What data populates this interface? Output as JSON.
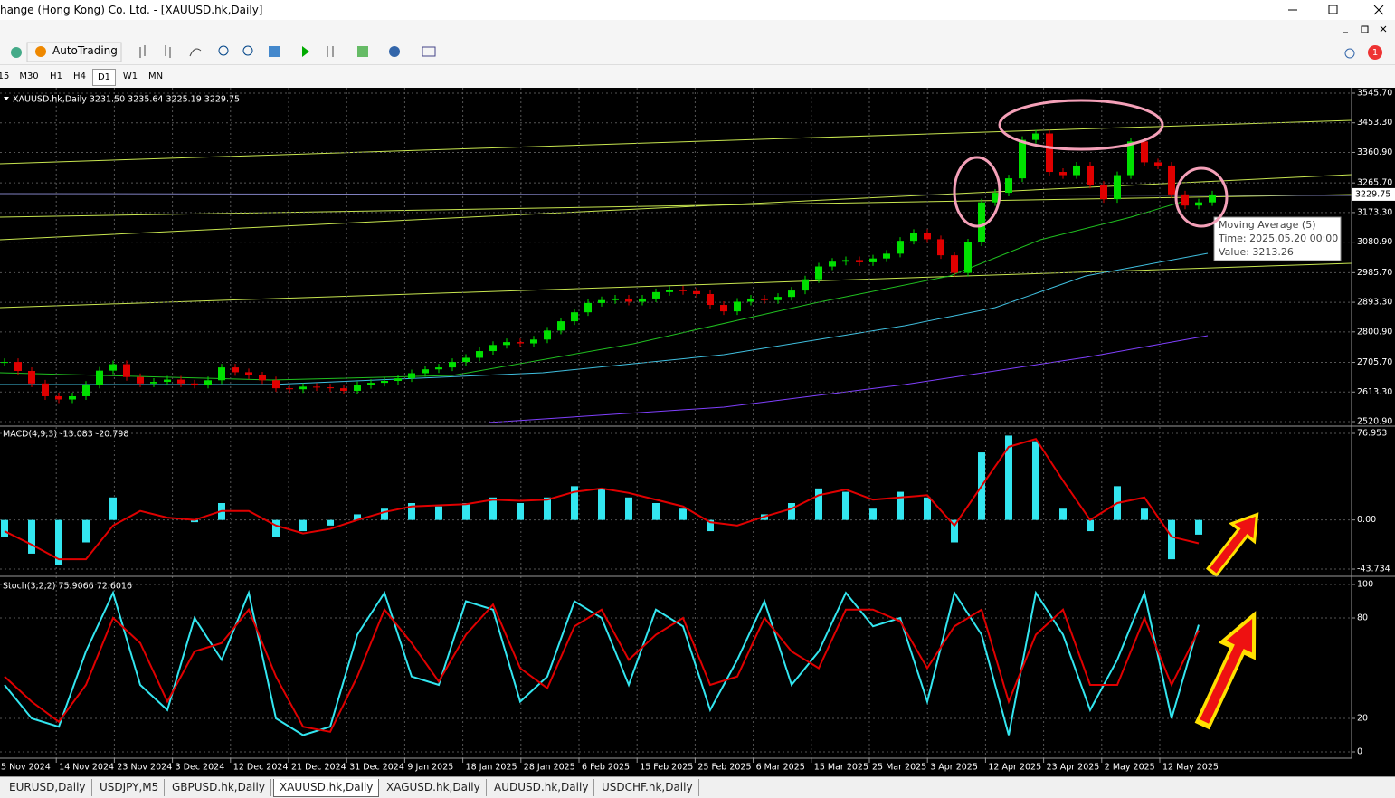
{
  "window": {
    "title": "hange (Hong Kong) Co. Ltd. - [XAUUSD.hk,Daily]"
  },
  "toolbar": {
    "autotrading": "AutoTrading",
    "timeframes": [
      "15",
      "M30",
      "H1",
      "H4",
      "D1",
      "W1",
      "MN"
    ],
    "badge": "1"
  },
  "chart_data": [
    {
      "type": "candlestick",
      "title": "XAUUSD.hk,Daily  3231.50 3235.64 3225.19 3229.75",
      "up_color": "#00e000",
      "down_color": "#e00000",
      "values": [
        2707,
        2679,
        2640,
        2600,
        2590,
        2600,
        2636,
        2680,
        2700,
        2660,
        2640,
        2645,
        2652,
        2640,
        2636,
        2650,
        2690,
        2675,
        2665,
        2650,
        2625,
        2622,
        2630,
        2628,
        2625,
        2617,
        2635,
        2642,
        2648,
        2656,
        2672,
        2684,
        2690,
        2707,
        2720,
        2741,
        2760,
        2769,
        2765,
        2777,
        2805,
        2834,
        2862,
        2891,
        2900,
        2905,
        2895,
        2905,
        2925,
        2933,
        2928,
        2919,
        2885,
        2865,
        2895,
        2905,
        2900,
        2910,
        2930,
        2965,
        3005,
        3020,
        3025,
        3018,
        3030,
        3045,
        3085,
        3110,
        3090,
        3040,
        2985,
        3080,
        3205,
        3235,
        3280,
        3400,
        3420,
        3300,
        3290,
        3320,
        3260,
        3215,
        3290,
        3395,
        3330,
        3320,
        3230,
        3195,
        3205,
        3229.75
      ],
      "ylim": [
        2520.9,
        3545.7
      ],
      "yticks": [
        {
          "value": 3545.7,
          "label": "3545.70"
        },
        {
          "value": 3453.3,
          "label": "3453.30"
        },
        {
          "value": 3360.9,
          "label": "3360.90"
        },
        {
          "value": 3265.7,
          "label": "3265.70"
        },
        {
          "value": 3173.3,
          "label": "3173.30"
        },
        {
          "value": 3080.9,
          "label": "3080.90"
        },
        {
          "value": 2985.7,
          "label": "2985.70"
        },
        {
          "value": 2893.3,
          "label": "2893.30"
        },
        {
          "value": 2800.9,
          "label": "2800.90"
        },
        {
          "value": 2705.7,
          "label": "2705.70"
        },
        {
          "value": 2613.3,
          "label": "2613.30"
        },
        {
          "value": 2520.9,
          "label": "2520.90"
        }
      ],
      "current": {
        "value": 3229.75,
        "label": "3229.75"
      },
      "tooltip": [
        "Moving Average (5)",
        "Time: 2025.05.20 00:00",
        "Value: 3213.26"
      ],
      "grid": true
    },
    {
      "type": "bar",
      "title": "MACD(4,9,3) -13.083 -20.798",
      "series": [
        {
          "color": "#33e6f0",
          "values": [
            -15,
            -30,
            -40,
            -20,
            20,
            0,
            0,
            -2,
            15,
            0,
            -15,
            -10,
            -5,
            5,
            10,
            15,
            12,
            15,
            20,
            15,
            20,
            30,
            28,
            20,
            15,
            10,
            -10,
            0,
            5,
            15,
            28,
            25,
            10,
            25,
            20,
            -20,
            60,
            75,
            70,
            10,
            -10,
            30,
            10,
            -35,
            -13.083
          ]
        },
        {
          "color": "#e00000",
          "values": [
            -10,
            -22,
            -35,
            -35,
            -5,
            8,
            2,
            0,
            8,
            8,
            -5,
            -12,
            -8,
            0,
            7,
            12,
            13,
            14,
            18,
            17,
            18,
            25,
            28,
            24,
            18,
            12,
            -2,
            -5,
            3,
            10,
            22,
            27,
            18,
            20,
            22,
            -5,
            30,
            65,
            72,
            35,
            0,
            15,
            20,
            -15,
            -20.798
          ]
        }
      ],
      "ylim": [
        -43.734,
        76.953
      ],
      "yticks": [
        76.953,
        {
          "value": 0,
          "label": "0.00"
        },
        -43.734
      ],
      "grid": true
    },
    {
      "type": "line",
      "title": "Stoch(3,2,2) 75.9066 72.6016",
      "series": [
        {
          "color": "#33e6f0",
          "values": [
            40,
            20,
            15,
            60,
            95,
            40,
            25,
            80,
            55,
            95,
            20,
            10,
            15,
            70,
            95,
            45,
            40,
            90,
            85,
            30,
            45,
            90,
            80,
            40,
            85,
            75,
            25,
            55,
            90,
            40,
            60,
            95,
            75,
            80,
            30,
            95,
            70,
            10,
            95,
            70,
            25,
            55,
            95,
            20,
            75.9066
          ]
        },
        {
          "color": "#e00000",
          "values": [
            45,
            30,
            18,
            40,
            80,
            65,
            30,
            60,
            65,
            85,
            45,
            15,
            12,
            45,
            85,
            65,
            42,
            70,
            88,
            50,
            38,
            75,
            85,
            55,
            70,
            80,
            40,
            45,
            80,
            60,
            50,
            85,
            85,
            78,
            50,
            75,
            85,
            30,
            70,
            85,
            40,
            40,
            80,
            40,
            72.6016
          ]
        }
      ],
      "ylim": [
        0,
        100
      ],
      "yticks": [
        100,
        80,
        20,
        0
      ],
      "grid": true
    }
  ],
  "time_axis": {
    "labels": [
      "5 Nov 2024",
      "14 Nov 2024",
      "23 Nov 2024",
      "3 Dec 2024",
      "12 Dec 2024",
      "21 Dec 2024",
      "31 Dec 2024",
      "9 Jan 2025",
      "18 Jan 2025",
      "28 Jan 2025",
      "6 Feb 2025",
      "15 Feb 2025",
      "25 Feb 2025",
      "6 Mar 2025",
      "15 Mar 2025",
      "25 Mar 2025",
      "3 Apr 2025",
      "12 Apr 2025",
      "23 Apr 2025",
      "2 May 2025",
      "12 May 2025"
    ]
  },
  "tabs": {
    "items": [
      "EURUSD,Daily",
      "USDJPY,M5",
      "GBPUSD.hk,Daily",
      "XAUUSD.hk,Daily",
      "XAGUSD.hk,Daily",
      "AUDUSD.hk,Daily",
      "USDCHF.hk,Daily"
    ],
    "active": 3
  }
}
